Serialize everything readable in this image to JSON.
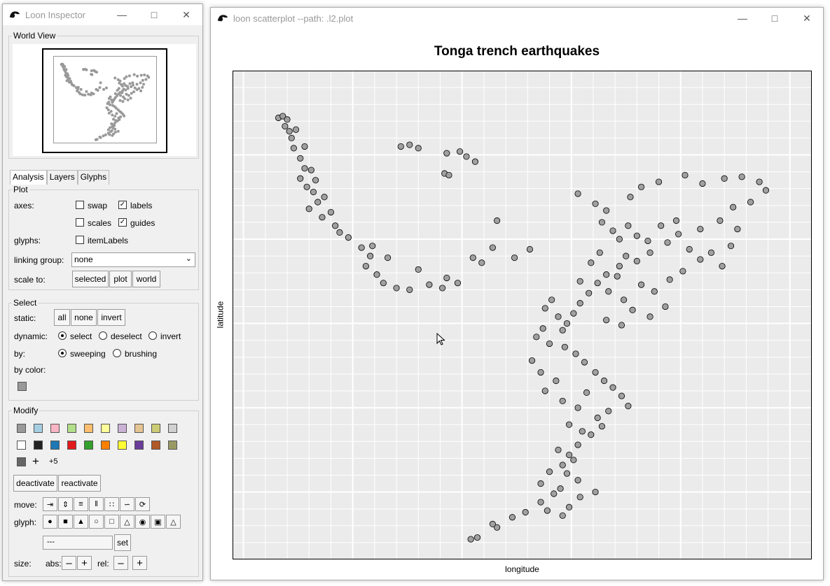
{
  "inspector": {
    "title": "Loon Inspector",
    "world_view_label": "World View",
    "tabs": [
      {
        "label": "Analysis"
      },
      {
        "label": "Layers"
      },
      {
        "label": "Glyphs"
      }
    ],
    "plot": {
      "legend": "Plot",
      "axes_label": "axes:",
      "swap": "swap",
      "labels": "labels",
      "scales": "scales",
      "guides": "guides",
      "glyphs_label": "glyphs:",
      "itemlabels": "itemLabels",
      "linking_label": "linking group:",
      "linking_value": "none",
      "scale_label": "scale to:",
      "scale_buttons": [
        "selected",
        "plot",
        "world"
      ]
    },
    "select": {
      "legend": "Select",
      "static_label": "static:",
      "static_buttons": [
        "all",
        "none",
        "invert"
      ],
      "dynamic_label": "dynamic:",
      "dynamic_options": [
        "select",
        "deselect",
        "invert"
      ],
      "by_label": "by:",
      "by_options": [
        "sweeping",
        "brushing"
      ],
      "by_color_label": "by color:"
    },
    "modify": {
      "legend": "Modify",
      "colors_row1": [
        "#999999",
        "#a6cee3",
        "#fbb4c4",
        "#b2df8a",
        "#fdbf6f",
        "#ffff99",
        "#cab2d6",
        "#e5c494",
        "#cccc77",
        "#d0d0d0"
      ],
      "colors_row2": [
        "#ffffff",
        "#222222",
        "#1f78b4",
        "#e31a1c",
        "#33a02c",
        "#ff7f00",
        "#ffff33",
        "#6a3d9a",
        "#b15928",
        "#999966"
      ],
      "more": "+5",
      "deactivate": "deactivate",
      "reactivate": "reactivate",
      "move_label": "move:",
      "glyph_label": "glyph:",
      "glyph_select": "---",
      "set": "set",
      "size_label": "size:",
      "abs_label": "abs:",
      "rel_label": "rel:"
    }
  },
  "plot_window": {
    "title": "loon scatterplot --path: .l2.plot"
  },
  "chart_data": {
    "type": "scatter",
    "title": "Tonga trench earthquakes",
    "xlabel": "longitude",
    "ylabel": "latitude",
    "xlim": [
      164.5,
      191
    ],
    "ylim": [
      -39,
      -10
    ],
    "grid": true,
    "point_color": "#a0a0a0",
    "points": [
      [
        166.6,
        -12.8
      ],
      [
        166.8,
        -12.7
      ],
      [
        167.0,
        -12.9
      ],
      [
        166.9,
        -13.3
      ],
      [
        167.1,
        -13.6
      ],
      [
        167.4,
        -13.5
      ],
      [
        167.2,
        -14.0
      ],
      [
        167.3,
        -14.6
      ],
      [
        167.6,
        -15.2
      ],
      [
        167.8,
        -15.8
      ],
      [
        167.6,
        -16.4
      ],
      [
        167.9,
        -16.9
      ],
      [
        168.2,
        -17.2
      ],
      [
        168.4,
        -17.8
      ],
      [
        168.0,
        -18.2
      ],
      [
        168.6,
        -18.7
      ],
      [
        169.2,
        -19.2
      ],
      [
        169.8,
        -19.9
      ],
      [
        170.4,
        -20.5
      ],
      [
        170.8,
        -21.0
      ],
      [
        170.6,
        -21.6
      ],
      [
        171.1,
        -22.1
      ],
      [
        171.4,
        -22.6
      ],
      [
        172.0,
        -22.9
      ],
      [
        172.6,
        -23.0
      ],
      [
        173.5,
        -22.7
      ],
      [
        174.1,
        -22.9
      ],
      [
        174.8,
        -22.6
      ],
      [
        174.3,
        -22.3
      ],
      [
        173.0,
        -21.8
      ],
      [
        171.6,
        -21.1
      ],
      [
        170.9,
        -20.4
      ],
      [
        169.4,
        -19.6
      ],
      [
        169.0,
        -18.4
      ],
      [
        168.7,
        -17.5
      ],
      [
        168.3,
        -16.5
      ],
      [
        168.1,
        -15.9
      ],
      [
        167.8,
        -14.5
      ],
      [
        172.2,
        -14.5
      ],
      [
        172.6,
        -14.4
      ],
      [
        174.3,
        -14.9
      ],
      [
        174.9,
        -14.8
      ],
      [
        175.6,
        -15.4
      ],
      [
        174.2,
        -16.1
      ],
      [
        174.4,
        -16.2
      ],
      [
        175.2,
        -15.1
      ],
      [
        173.0,
        -14.6
      ],
      [
        176.6,
        -18.9
      ],
      [
        178.1,
        -20.6
      ],
      [
        177.4,
        -21.1
      ],
      [
        176.4,
        -20.5
      ],
      [
        175.9,
        -21.4
      ],
      [
        175.5,
        -21.1
      ],
      [
        180.3,
        -17.3
      ],
      [
        181.1,
        -17.9
      ],
      [
        181.6,
        -18.3
      ],
      [
        182.7,
        -17.5
      ],
      [
        183.2,
        -16.9
      ],
      [
        184.0,
        -16.6
      ],
      [
        185.2,
        -16.2
      ],
      [
        186.0,
        -16.7
      ],
      [
        187.0,
        -16.4
      ],
      [
        187.8,
        -16.3
      ],
      [
        188.6,
        -16.6
      ],
      [
        188.9,
        -17.1
      ],
      [
        188.2,
        -17.8
      ],
      [
        187.4,
        -18.1
      ],
      [
        186.8,
        -18.9
      ],
      [
        185.9,
        -19.4
      ],
      [
        184.9,
        -19.7
      ],
      [
        184.4,
        -20.2
      ],
      [
        183.6,
        -20.8
      ],
      [
        183.0,
        -21.3
      ],
      [
        182.2,
        -21.6
      ],
      [
        181.6,
        -22.1
      ],
      [
        181.2,
        -22.6
      ],
      [
        180.8,
        -23.2
      ],
      [
        180.4,
        -23.8
      ],
      [
        180.1,
        -24.4
      ],
      [
        179.8,
        -25.0
      ],
      [
        179.6,
        -25.4
      ],
      [
        181.4,
        -19.0
      ],
      [
        181.9,
        -19.5
      ],
      [
        182.2,
        -20.0
      ],
      [
        182.6,
        -19.2
      ],
      [
        183.0,
        -19.8
      ],
      [
        183.5,
        -20.1
      ],
      [
        184.1,
        -19.2
      ],
      [
        184.8,
        -18.9
      ],
      [
        185.4,
        -20.6
      ],
      [
        185.9,
        -21.2
      ],
      [
        186.4,
        -20.8
      ],
      [
        186.9,
        -21.6
      ],
      [
        187.3,
        -20.4
      ],
      [
        187.6,
        -19.4
      ],
      [
        182.5,
        -21.0
      ],
      [
        182.1,
        -22.2
      ],
      [
        181.3,
        -20.8
      ],
      [
        180.9,
        -21.4
      ],
      [
        181.7,
        -23.1
      ],
      [
        182.4,
        -23.6
      ],
      [
        183.2,
        -22.7
      ],
      [
        183.8,
        -23.1
      ],
      [
        184.5,
        -22.4
      ],
      [
        185.1,
        -21.9
      ],
      [
        184.3,
        -24.0
      ],
      [
        183.6,
        -24.6
      ],
      [
        182.8,
        -24.2
      ],
      [
        182.3,
        -25.1
      ],
      [
        181.6,
        -24.8
      ],
      [
        180.4,
        -22.5
      ],
      [
        179.1,
        -23.6
      ],
      [
        178.8,
        -24.1
      ],
      [
        179.4,
        -24.6
      ],
      [
        178.7,
        -25.3
      ],
      [
        178.4,
        -25.8
      ],
      [
        179.0,
        -26.2
      ],
      [
        179.7,
        -26.4
      ],
      [
        180.2,
        -26.8
      ],
      [
        180.6,
        -27.3
      ],
      [
        181.1,
        -27.9
      ],
      [
        181.5,
        -28.4
      ],
      [
        181.9,
        -28.8
      ],
      [
        182.3,
        -29.3
      ],
      [
        182.6,
        -29.9
      ],
      [
        181.7,
        -30.2
      ],
      [
        181.2,
        -30.6
      ],
      [
        181.4,
        -31.1
      ],
      [
        180.9,
        -31.6
      ],
      [
        180.3,
        -32.2
      ],
      [
        179.9,
        -32.8
      ],
      [
        179.6,
        -33.4
      ],
      [
        179.8,
        -33.9
      ],
      [
        180.3,
        -34.3
      ],
      [
        179.2,
        -35.1
      ],
      [
        178.6,
        -35.6
      ],
      [
        177.9,
        -36.2
      ],
      [
        177.3,
        -36.5
      ],
      [
        176.6,
        -37.1
      ],
      [
        175.7,
        -37.7
      ],
      [
        175.4,
        -37.8
      ],
      [
        176.4,
        -36.9
      ],
      [
        178.2,
        -27.2
      ],
      [
        178.6,
        -27.9
      ],
      [
        179.3,
        -28.4
      ],
      [
        178.8,
        -29.0
      ],
      [
        179.6,
        -29.6
      ],
      [
        180.3,
        -30.0
      ],
      [
        180.7,
        -29.1
      ],
      [
        179.9,
        -31.0
      ],
      [
        180.5,
        -31.4
      ],
      [
        179.4,
        -32.5
      ],
      [
        180.1,
        -33.1
      ],
      [
        179.0,
        -33.8
      ],
      [
        178.6,
        -34.5
      ],
      [
        179.5,
        -34.8
      ],
      [
        180.4,
        -35.3
      ],
      [
        181.1,
        -35.0
      ],
      [
        179.9,
        -35.9
      ],
      [
        178.9,
        -36.1
      ],
      [
        179.6,
        -36.4
      ]
    ]
  }
}
